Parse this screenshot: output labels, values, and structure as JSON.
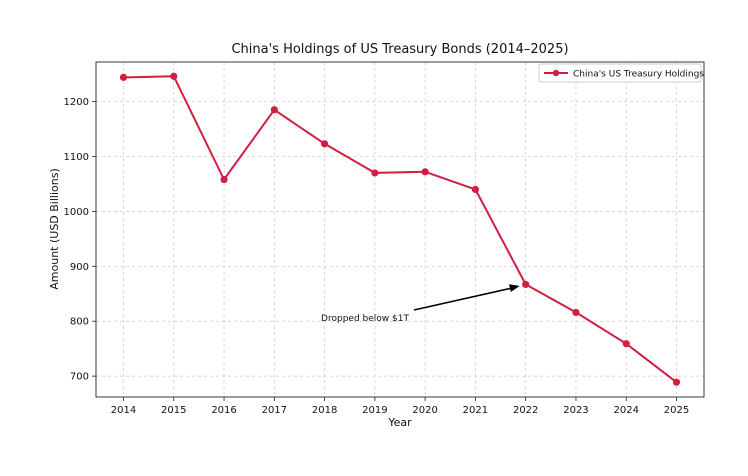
{
  "chart_data": {
    "type": "line",
    "title": "China's Holdings of US Treasury Bonds (2014–2025)",
    "xlabel": "Year",
    "ylabel": "Amount (USD Billions)",
    "x": [
      "2014",
      "2015",
      "2016",
      "2017",
      "2018",
      "2019",
      "2020",
      "2021",
      "2022",
      "2023",
      "2024",
      "2025"
    ],
    "series": [
      {
        "name": "China's US Treasury Holdings",
        "values": [
          1244,
          1246,
          1058,
          1185,
          1123,
          1070,
          1072,
          1040,
          867,
          816,
          759,
          689
        ],
        "color": "#d11f43"
      }
    ],
    "yticks": [
      700,
      800,
      900,
      1000,
      1100,
      1200
    ],
    "ylim": [
      662,
      1272
    ],
    "grid": true,
    "legend_position": "top-right",
    "annotation": {
      "text": "Dropped below $1T",
      "x": "2022",
      "y": 867
    }
  }
}
